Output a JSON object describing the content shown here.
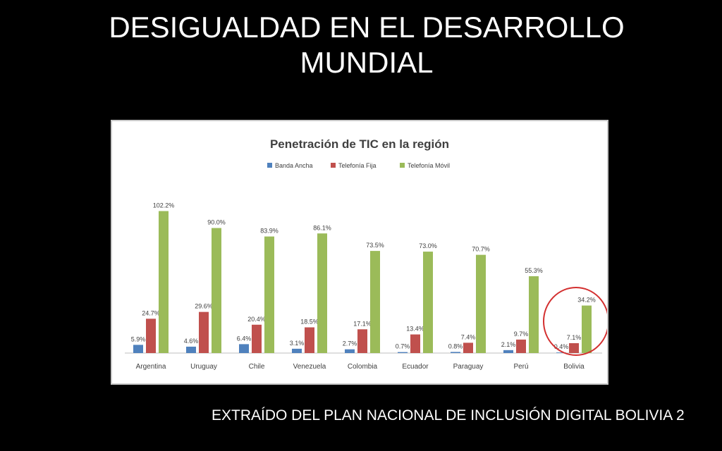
{
  "slide": {
    "title_line1": "DESIGUALDAD EN EL DESARROLLO",
    "title_line2": "MUNDIAL",
    "caption": "EXTRAÍDO DEL PLAN NACIONAL DE INCLUSIÓN DIGITAL BOLIVIA 2"
  },
  "chart_data": {
    "type": "bar",
    "title": "Penetración de TIC en la región",
    "categories": [
      "Argentina",
      "Uruguay",
      "Chile",
      "Venezuela",
      "Colombia",
      "Ecuador",
      "Paraguay",
      "Perú",
      "Bolivia"
    ],
    "series": [
      {
        "name": "Banda Ancha",
        "color": "#4f81bd",
        "values": [
          5.9,
          4.6,
          6.4,
          3.1,
          2.7,
          0.7,
          0.8,
          2.1,
          0.4
        ],
        "labels": [
          "5.9%",
          "4.6%",
          "6.4%",
          "3.1%",
          "2.7%",
          "0.7%",
          "0.8%",
          "2.1%",
          "0.4%"
        ]
      },
      {
        "name": "Telefonía Fija",
        "color": "#c0504d",
        "values": [
          24.7,
          29.6,
          20.4,
          18.5,
          17.1,
          13.4,
          7.4,
          9.7,
          7.1
        ],
        "labels": [
          "24.7%",
          "29.6%",
          "20.4%",
          "18.5%",
          "17.1%",
          "13.4%",
          "7.4%",
          "9.7%",
          "7.1%"
        ]
      },
      {
        "name": "Telefonía Móvil",
        "color": "#9bbb59",
        "values": [
          102.2,
          90.0,
          83.9,
          86.1,
          73.5,
          73.0,
          70.7,
          55.3,
          34.2
        ],
        "labels": [
          "102.2%",
          "90.0%",
          "83.9%",
          "86.1%",
          "73.5%",
          "73.0%",
          "70.7%",
          "55.3%",
          "34.2%"
        ]
      }
    ],
    "ylim": [
      0,
      105
    ],
    "grid": false,
    "legend_position": "top",
    "highlight": {
      "category": "Bolivia",
      "color": "#d32f2f"
    }
  }
}
